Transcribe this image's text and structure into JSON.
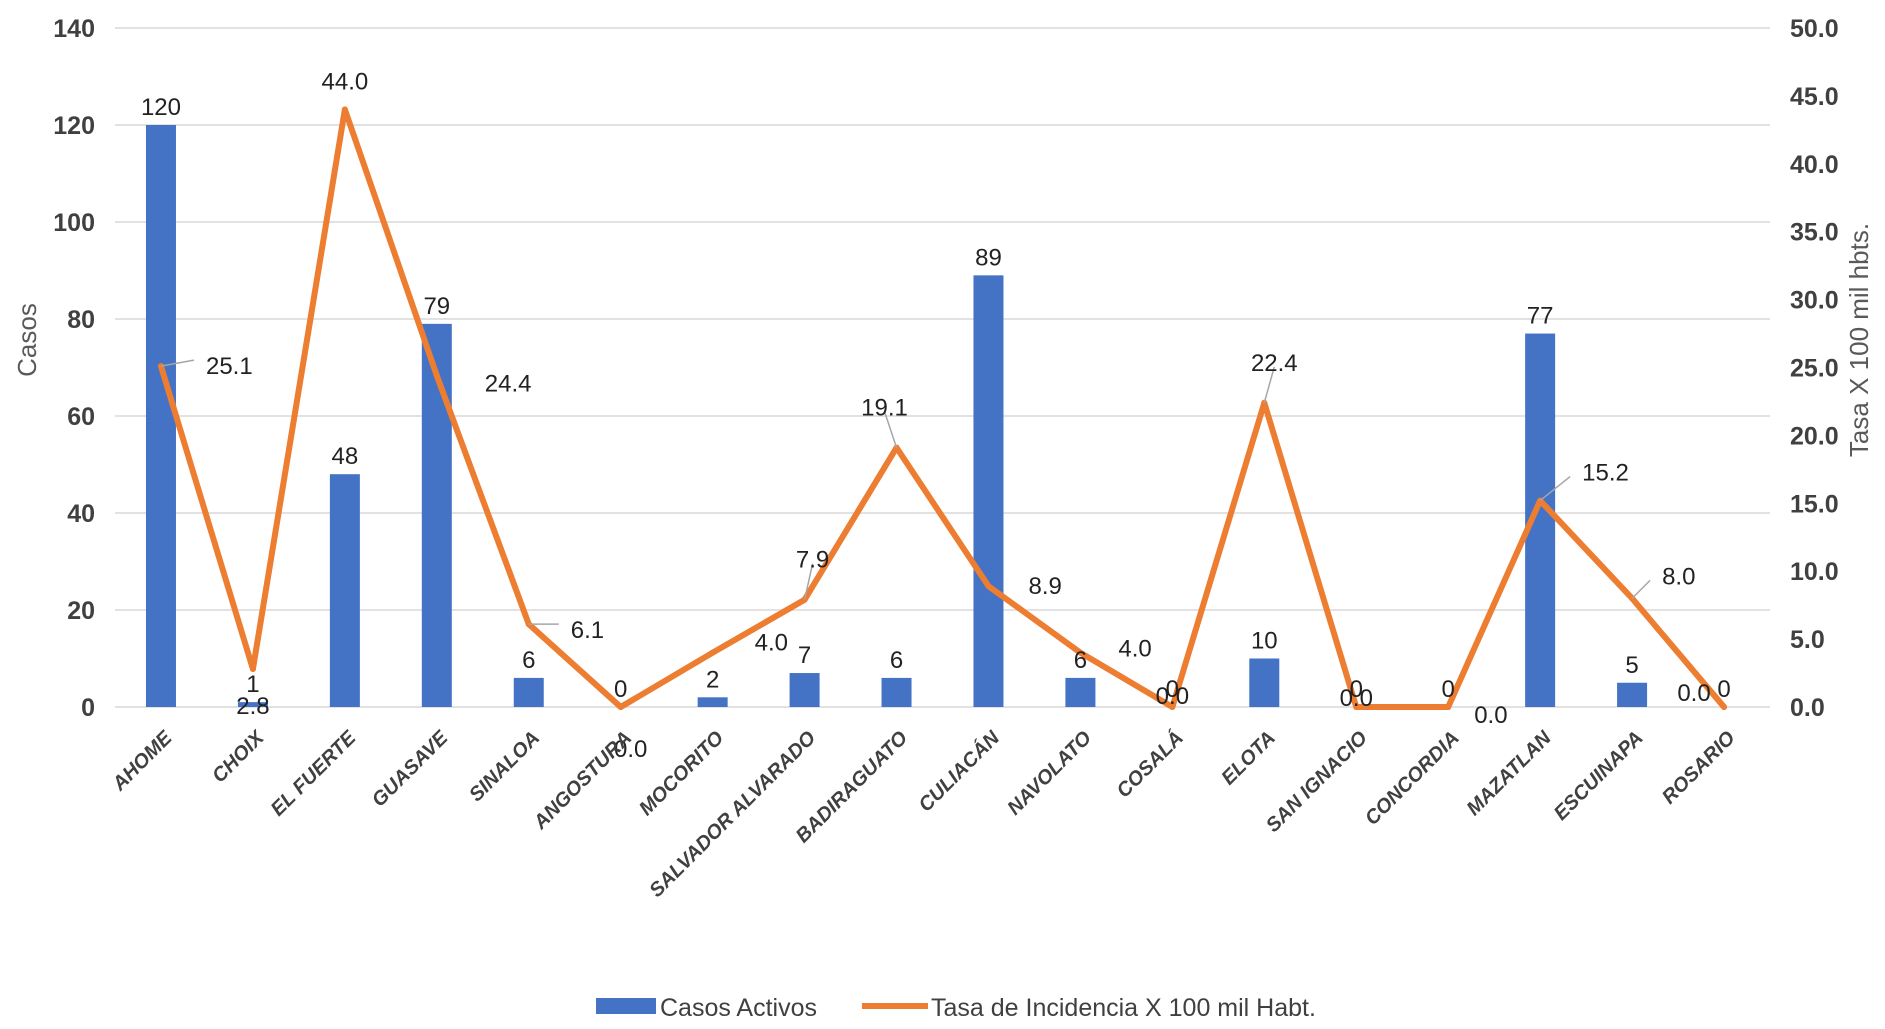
{
  "chart_data": {
    "type": "bar",
    "categories": [
      "AHOME",
      "CHOIX",
      "EL FUERTE",
      "GUASAVE",
      "SINALOA",
      "ANGOSTURA",
      "MOCORITO",
      "SALVADOR ALVARADO",
      "BADIRAGUATO",
      "CULIACÁN",
      "NAVOLATO",
      "COSALÁ",
      "ELOTA",
      "SAN IGNACIO",
      "CONCORDIA",
      "MAZATLAN",
      "ESCUINAPA",
      "ROSARIO"
    ],
    "series": [
      {
        "name": "Casos Activos",
        "kind": "bar",
        "axis": "left",
        "color": "#4472C4",
        "values": [
          120,
          1,
          48,
          79,
          6,
          0,
          2,
          7,
          6,
          89,
          6,
          0,
          10,
          0,
          0,
          77,
          5,
          0
        ],
        "labels": [
          "120",
          "1",
          "48",
          "79",
          "6",
          "0",
          "2",
          "7",
          "6",
          "89",
          "6",
          "0",
          "10",
          "0",
          "0",
          "77",
          "5",
          "0"
        ]
      },
      {
        "name": "Tasa de Incidencia X 100 mil Habt.",
        "kind": "line",
        "axis": "right",
        "color": "#ED7D31",
        "values": [
          25.1,
          2.8,
          44.0,
          24.4,
          6.1,
          0.0,
          4.0,
          7.9,
          19.1,
          8.9,
          4.0,
          0.0,
          22.4,
          0.0,
          0.0,
          15.2,
          8.0,
          0.0
        ],
        "labels": [
          "25.1",
          "2.8",
          "44.0",
          "24.4",
          "6.1",
          "0.0",
          "4.0",
          "7.9",
          "19.1",
          "8.9",
          "4.0",
          "0.0",
          "22.4",
          "0.0",
          "0.0",
          "15.2",
          "8.0",
          "0.0"
        ]
      }
    ],
    "ylabel": "Casos",
    "y2label": "Tasa X 100 mil hbts.",
    "ylim": [
      0,
      140
    ],
    "y2lim": [
      0,
      50
    ],
    "yticks": [
      "0",
      "20",
      "40",
      "60",
      "80",
      "100",
      "120",
      "140"
    ],
    "y2ticks": [
      "0.0",
      "5.0",
      "10.0",
      "15.0",
      "20.0",
      "25.0",
      "30.0",
      "35.0",
      "40.0",
      "45.0",
      "50.0"
    ],
    "grid": true,
    "legend_position": "bottom"
  }
}
